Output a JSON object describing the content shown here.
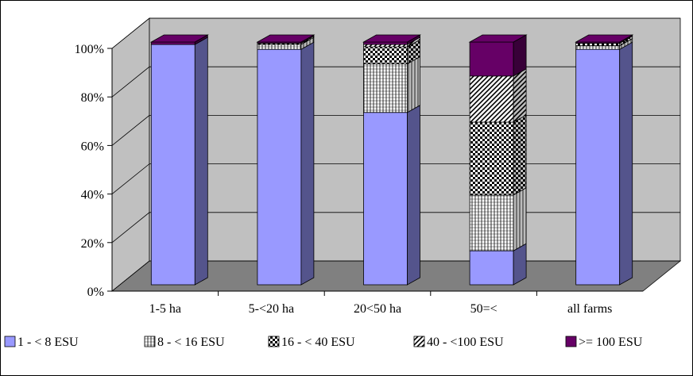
{
  "chart_data": {
    "type": "bar",
    "stacked": true,
    "percent_stacked": true,
    "three_d": true,
    "categories": [
      "1-5 ha",
      "5-<20 ha",
      "20<50 ha",
      "50=<",
      "all farms"
    ],
    "series": [
      {
        "name": "1 - < 8 ESU",
        "values": [
          99,
          97,
          71,
          14,
          97
        ],
        "color": "#9999ff",
        "pattern": "solid"
      },
      {
        "name": "8 - < 16 ESU",
        "values": [
          0,
          2,
          20,
          23,
          1.5
        ],
        "color": "#ffffff",
        "pattern": "vertical-lines"
      },
      {
        "name": "16 - < 40 ESU",
        "values": [
          0,
          0.5,
          7,
          30,
          1
        ],
        "color": "#ffffff",
        "pattern": "checker"
      },
      {
        "name": "40 - <100 ESU",
        "values": [
          0,
          0,
          1,
          19,
          0
        ],
        "color": "#ffffff",
        "pattern": "diagonal"
      },
      {
        "name": ">= 100 ESU",
        "values": [
          1,
          0.5,
          1,
          14,
          0.5
        ],
        "color": "#660066",
        "pattern": "solid"
      }
    ],
    "ylim": [
      0,
      100
    ],
    "yticks": [
      "0%",
      "20%",
      "40%",
      "60%",
      "80%",
      "100%"
    ],
    "grid": true,
    "legend": "bottom",
    "wall_color": "#c0c0c0",
    "floor_color": "#808080"
  }
}
